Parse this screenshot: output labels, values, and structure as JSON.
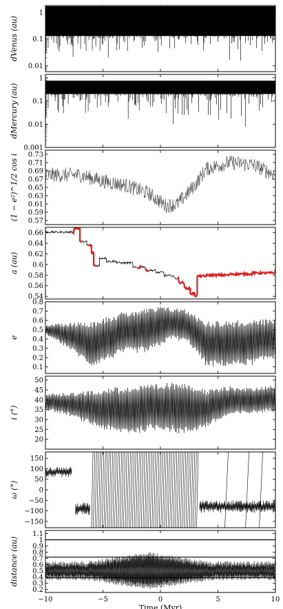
{
  "chart_data": {
    "type": "line",
    "x_range": [
      -10,
      10
    ],
    "x_ticks": [
      "−10",
      "−5",
      "0",
      "5",
      "10"
    ],
    "x_label": "Time (Myr)",
    "panels": [
      {
        "id": "dvenus",
        "ylabel_html": "d<tspan font-size='7' dy='3'>Venus</tspan><tspan dy='-3'> (au)</tspan>",
        "ylabel_text": "dVenus (au)",
        "scale": "log",
        "ylim": [
          0.006,
          1.8
        ],
        "yticks": [
          [
            "1",
            1
          ],
          [
            "0.1",
            0.1
          ],
          [
            "0.01",
            0.01
          ]
        ],
        "band": [
          0.13,
          1.7
        ],
        "spikes": "down",
        "series": [
          {
            "name": "",
            "color": "#000000"
          }
        ]
      },
      {
        "id": "dmercury",
        "ylabel_text": "dMercury (au)",
        "scale": "log",
        "ylim": [
          0.001,
          1.4
        ],
        "yticks": [
          [
            "1",
            1
          ],
          [
            "0.1",
            0.1
          ],
          [
            "0.01",
            0.01
          ],
          [
            "0.001",
            0.001
          ]
        ],
        "band": [
          0.2,
          0.75
        ],
        "spikes": "down",
        "series": [
          {
            "name": "",
            "color": "#000000"
          }
        ]
      },
      {
        "id": "cosi",
        "ylabel_text": "(1 − e²)^1/2 cos i",
        "scale": "linear",
        "ylim": [
          0.56,
          0.74
        ],
        "yticks": [
          [
            "0.73",
            0.73
          ],
          [
            "0.71",
            0.71
          ],
          [
            "0.69",
            0.69
          ],
          [
            "0.67",
            0.67
          ],
          [
            "0.65",
            0.65
          ],
          [
            "0.63",
            0.63
          ],
          [
            "0.61",
            0.61
          ],
          [
            "0.59",
            0.59
          ],
          [
            "0.57",
            0.57
          ]
        ],
        "trend": [
          [
            -10,
            0.68
          ],
          [
            -7,
            0.68
          ],
          [
            -5,
            0.665
          ],
          [
            -3,
            0.655
          ],
          [
            -1,
            0.635
          ],
          [
            0.5,
            0.605
          ],
          [
            1.5,
            0.61
          ],
          [
            3,
            0.655
          ],
          [
            4,
            0.695
          ],
          [
            6,
            0.71
          ],
          [
            8,
            0.705
          ],
          [
            10,
            0.68
          ]
        ],
        "noise": 0.018,
        "series": [
          {
            "name": "",
            "color": "#555555"
          }
        ]
      },
      {
        "id": "a",
        "ylabel_text": "a (au)",
        "scale": "linear",
        "ylim": [
          0.535,
          0.67
        ],
        "yticks": [
          [
            "0.66",
            0.66
          ],
          [
            "0.64",
            0.64
          ],
          [
            "0.62",
            0.62
          ],
          [
            "0.6",
            0.6
          ],
          [
            "0.58",
            0.58
          ],
          [
            "0.56",
            0.56
          ],
          [
            "0.54",
            0.54
          ]
        ],
        "steps": [
          [
            -10,
            0.661
          ],
          [
            -7.6,
            0.661
          ],
          [
            -7.5,
            0.668
          ],
          [
            -7.0,
            0.643
          ],
          [
            -6.4,
            0.636
          ],
          [
            -6.0,
            0.622
          ],
          [
            -5.8,
            0.598
          ],
          [
            -5.3,
            0.612
          ],
          [
            -4.7,
            0.606
          ],
          [
            -3.8,
            0.603
          ],
          [
            -2.4,
            0.594
          ],
          [
            -1.8,
            0.596
          ],
          [
            -1.3,
            0.589
          ],
          [
            -0.4,
            0.585
          ],
          [
            0.3,
            0.579
          ],
          [
            1.2,
            0.574
          ],
          [
            1.6,
            0.566
          ],
          [
            2.1,
            0.555
          ],
          [
            2.6,
            0.545
          ],
          [
            3.0,
            0.541
          ],
          [
            3.2,
            0.578
          ],
          [
            4.0,
            0.58
          ],
          [
            6.0,
            0.582
          ],
          [
            8.0,
            0.584
          ],
          [
            9.6,
            0.584
          ],
          [
            10,
            0.591
          ]
        ],
        "red_segments": [
          [
            -7.6,
            -6.9
          ],
          [
            -6.3,
            -5.9
          ],
          [
            -5.9,
            -5.6
          ],
          [
            -2.0,
            -1.6
          ],
          [
            -1.3,
            -1.0
          ],
          [
            1.5,
            3.0
          ],
          [
            3.0,
            10.0
          ]
        ],
        "series": [
          {
            "name": "",
            "color": "#000000"
          },
          {
            "name": "",
            "color": "#e02020"
          }
        ]
      },
      {
        "id": "e",
        "ylabel_text": "e",
        "scale": "linear",
        "ylim": [
          0.03,
          0.8
        ],
        "yticks": [
          [
            "0.8",
            0.8
          ],
          [
            "0.7",
            0.7
          ],
          [
            "0.6",
            0.6
          ],
          [
            "0.5",
            0.5
          ],
          [
            "0.4",
            0.4
          ],
          [
            "0.3",
            0.3
          ],
          [
            "0.2",
            0.2
          ],
          [
            "0.1",
            0.1
          ]
        ],
        "upper": [
          [
            -10,
            0.55
          ],
          [
            -6,
            0.6
          ],
          [
            -3,
            0.7
          ],
          [
            0,
            0.75
          ],
          [
            2,
            0.73
          ],
          [
            4,
            0.6
          ],
          [
            6,
            0.6
          ],
          [
            10,
            0.62
          ]
        ],
        "lower": [
          [
            -10,
            0.45
          ],
          [
            -8,
            0.3
          ],
          [
            -6,
            0.1
          ],
          [
            -3,
            0.25
          ],
          [
            -1,
            0.25
          ],
          [
            1,
            0.4
          ],
          [
            2.5,
            0.35
          ],
          [
            4,
            0.1
          ],
          [
            6,
            0.1
          ],
          [
            8,
            0.12
          ],
          [
            10,
            0.2
          ]
        ],
        "series": [
          {
            "name": "",
            "color": "#000000"
          }
        ]
      },
      {
        "id": "inc",
        "ylabel_text": "i (°)",
        "scale": "linear",
        "ylim": [
          15,
          52
        ],
        "yticks": [
          [
            "50",
            50
          ],
          [
            "45",
            45
          ],
          [
            "40",
            40
          ],
          [
            "35",
            35
          ],
          [
            "30",
            30
          ],
          [
            "25",
            25
          ],
          [
            "20",
            20
          ]
        ],
        "upper": [
          [
            -10,
            43
          ],
          [
            -7,
            44
          ],
          [
            -5,
            46
          ],
          [
            -3,
            47
          ],
          [
            0,
            48
          ],
          [
            2,
            50
          ],
          [
            4,
            45
          ],
          [
            6,
            47
          ],
          [
            8,
            46
          ],
          [
            10,
            48
          ]
        ],
        "lower": [
          [
            -10,
            35
          ],
          [
            -8,
            32
          ],
          [
            -6,
            27
          ],
          [
            -4,
            23
          ],
          [
            -2,
            23
          ],
          [
            0,
            25
          ],
          [
            2,
            22
          ],
          [
            4,
            26
          ],
          [
            6,
            32
          ],
          [
            8,
            33
          ],
          [
            10,
            34
          ]
        ],
        "series": [
          {
            "name": "",
            "color": "#000000"
          }
        ]
      },
      {
        "id": "omega",
        "ylabel_text": "ω (°)",
        "scale": "linear",
        "ylim": [
          -180,
          180
        ],
        "yticks": [
          [
            "150",
            150
          ],
          [
            "100",
            100
          ],
          [
            "50",
            50
          ],
          [
            "0",
            0
          ],
          [
            "−50",
            -50
          ],
          [
            "−100",
            -100
          ],
          [
            "−150",
            -150
          ]
        ],
        "phases": [
          {
            "x": [
              -10,
              -7.7
            ],
            "kind": "osc",
            "center": 85,
            "amp": 25
          },
          {
            "x": [
              -7.4,
              -6.1
            ],
            "kind": "osc",
            "center": -90,
            "amp": 30
          },
          {
            "x": [
              -6.0,
              3.2
            ],
            "kind": "circ"
          },
          {
            "x": [
              3.4,
              10
            ],
            "kind": "osc",
            "center": -80,
            "amp": 30
          }
        ],
        "series": [
          {
            "name": "",
            "color": "#000000"
          }
        ]
      },
      {
        "id": "dist",
        "ylabel_text": "distance (au)",
        "scale": "linear",
        "ylim": [
          0.15,
          1.15
        ],
        "yticks": [
          [
            "1.1",
            1.1
          ],
          [
            "1",
            1.0
          ],
          [
            "0.9",
            0.9
          ],
          [
            "0.8",
            0.8
          ],
          [
            "0.7",
            0.7
          ],
          [
            "0.6",
            0.6
          ],
          [
            "0.5",
            0.5
          ],
          [
            "0.4",
            0.4
          ],
          [
            "0.3",
            0.3
          ],
          [
            "0.2",
            0.2
          ]
        ],
        "hlines": [
          1.0,
          0.72,
          0.387
        ],
        "series": [
          {
            "name": "",
            "color": "#000000"
          }
        ]
      }
    ]
  }
}
